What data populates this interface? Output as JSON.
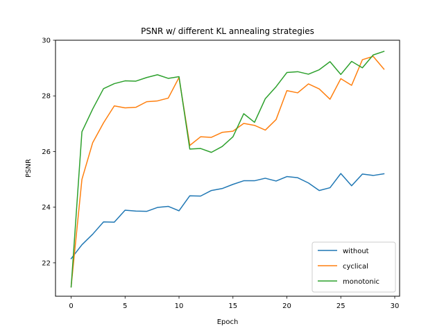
{
  "chart_data": {
    "type": "line",
    "title": "PSNR w/ different KL annealing strategies",
    "xlabel": "Epoch",
    "ylabel": "PSNR",
    "xlim": [
      -1.45,
      30.45
    ],
    "ylim": [
      20.8,
      30.0
    ],
    "xticks": [
      0,
      5,
      10,
      15,
      20,
      25,
      30
    ],
    "yticks": [
      22,
      24,
      26,
      28,
      30
    ],
    "grid": false,
    "legend_position": "lower right",
    "x": [
      0,
      1,
      2,
      3,
      4,
      5,
      6,
      7,
      8,
      9,
      10,
      11,
      12,
      13,
      14,
      15,
      16,
      17,
      18,
      19,
      20,
      21,
      22,
      23,
      24,
      25,
      26,
      27,
      28,
      29
    ],
    "series": [
      {
        "name": "without",
        "color": "#1f77b4",
        "values": [
          22.15,
          22.65,
          23.03,
          23.47,
          23.46,
          23.89,
          23.86,
          23.85,
          23.99,
          24.03,
          23.87,
          24.41,
          24.4,
          24.6,
          24.67,
          24.82,
          24.95,
          24.95,
          25.04,
          24.94,
          25.1,
          25.06,
          24.87,
          24.6,
          24.7,
          25.21,
          24.77,
          25.19,
          25.14,
          25.2
        ]
      },
      {
        "name": "cyclical",
        "color": "#ff7f0e",
        "values": [
          21.15,
          25.0,
          26.32,
          27.03,
          27.64,
          27.57,
          27.59,
          27.79,
          27.82,
          27.92,
          28.66,
          26.22,
          26.53,
          26.51,
          26.69,
          26.73,
          27.01,
          26.94,
          26.77,
          27.15,
          28.19,
          28.11,
          28.43,
          28.25,
          27.88,
          28.62,
          28.38,
          29.3,
          29.42,
          28.96
        ]
      },
      {
        "name": "monotonic",
        "color": "#2ca02c",
        "values": [
          21.13,
          26.71,
          27.53,
          28.26,
          28.44,
          28.54,
          28.53,
          28.66,
          28.76,
          28.63,
          28.69,
          26.09,
          26.11,
          25.97,
          26.18,
          26.53,
          27.36,
          27.05,
          27.9,
          28.33,
          28.84,
          28.87,
          28.78,
          28.94,
          29.23,
          28.77,
          29.24,
          29.01,
          29.47,
          29.6
        ]
      }
    ]
  }
}
